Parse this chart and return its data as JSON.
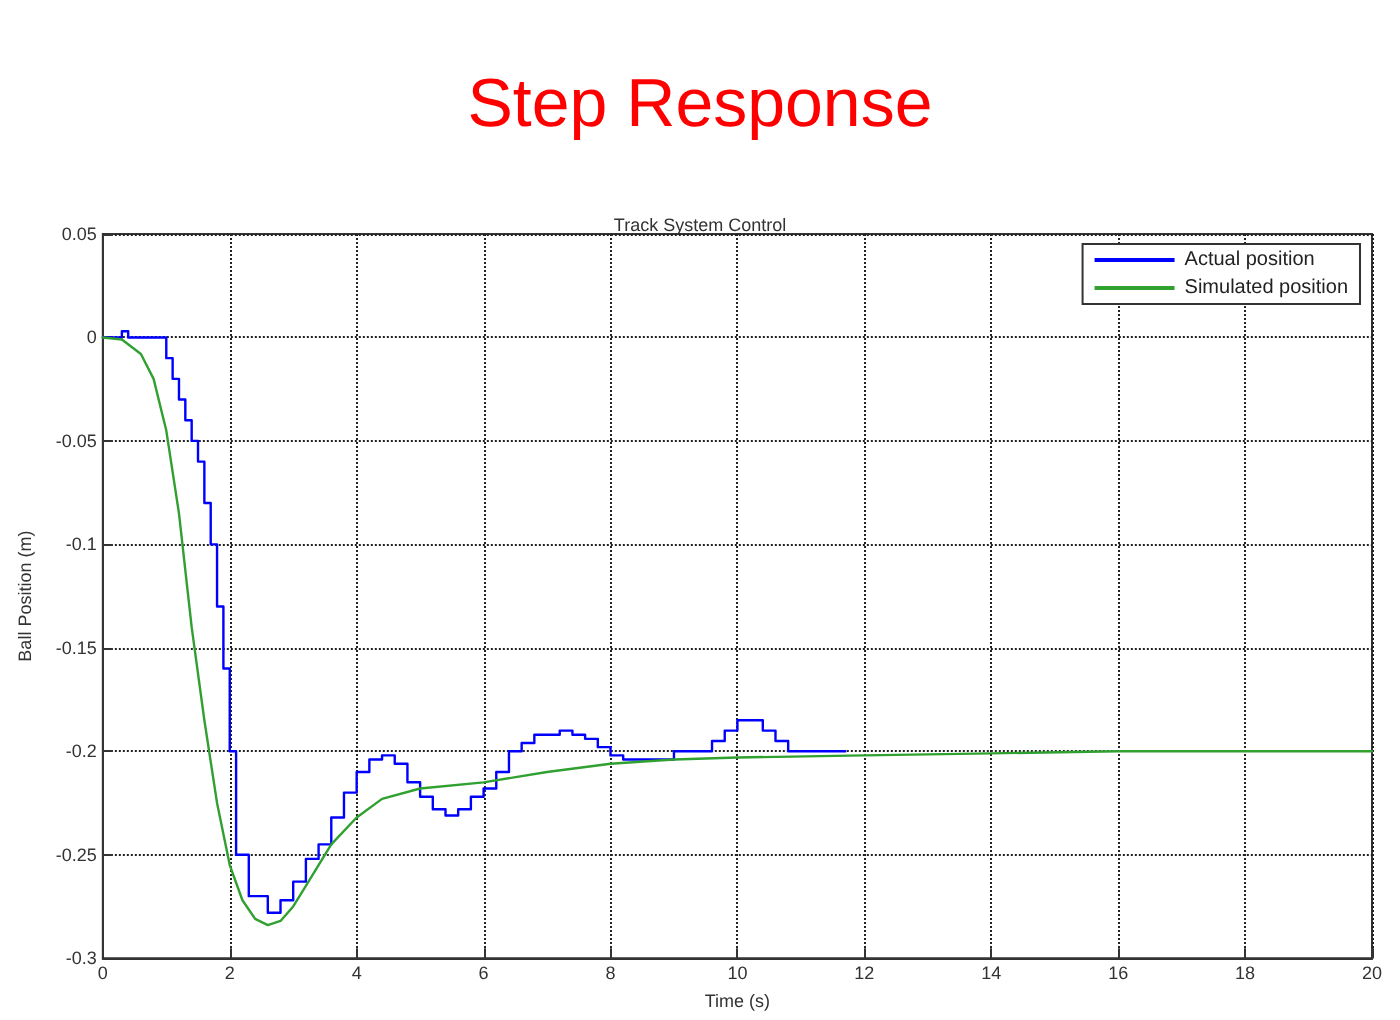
{
  "chart_data": {
    "type": "line",
    "title": "Step Response",
    "subtitle": "Track System Control",
    "xlabel": "Time (s)",
    "ylabel": "Ball Position (m)",
    "xlim": [
      0,
      20
    ],
    "xticks": [
      0,
      2,
      4,
      6,
      8,
      10,
      12,
      14,
      16,
      18,
      20
    ],
    "ylim": [
      -0.3,
      0.05
    ],
    "yticks": [
      -0.3,
      -0.25,
      -0.2,
      -0.15,
      -0.1,
      -0.05,
      0,
      0.05
    ],
    "grid": true,
    "legend": "top right",
    "marker": "none",
    "line_style": "solid",
    "series": [
      {
        "name": "Actual position",
        "type": "step",
        "color": "#0000ff",
        "x": [
          0,
          0.3,
          0.4,
          0.9,
          1.0,
          1.1,
          1.2,
          1.3,
          1.4,
          1.5,
          1.6,
          1.7,
          1.8,
          1.9,
          2.0,
          2.1,
          2.3,
          2.6,
          2.8,
          3.0,
          3.2,
          3.4,
          3.6,
          3.8,
          4.0,
          4.2,
          4.4,
          4.6,
          4.8,
          5.0,
          5.2,
          5.4,
          5.6,
          5.8,
          6.0,
          6.2,
          6.4,
          6.6,
          6.8,
          7.0,
          7.2,
          7.4,
          7.6,
          7.8,
          8.0,
          8.2,
          8.6,
          9.0,
          9.4,
          9.6,
          9.8,
          10.0,
          10.3,
          10.4,
          10.6,
          10.8,
          11.7
        ],
        "values": [
          0,
          0.003,
          0,
          0,
          -0.01,
          -0.02,
          -0.03,
          -0.04,
          -0.05,
          -0.06,
          -0.08,
          -0.1,
          -0.13,
          -0.16,
          -0.2,
          -0.25,
          -0.27,
          -0.278,
          -0.272,
          -0.263,
          -0.252,
          -0.245,
          -0.232,
          -0.22,
          -0.21,
          -0.204,
          -0.202,
          -0.206,
          -0.215,
          -0.222,
          -0.228,
          -0.231,
          -0.228,
          -0.222,
          -0.218,
          -0.21,
          -0.2,
          -0.196,
          -0.192,
          -0.192,
          -0.19,
          -0.192,
          -0.194,
          -0.198,
          -0.202,
          -0.204,
          -0.204,
          -0.2,
          -0.2,
          -0.195,
          -0.19,
          -0.185,
          -0.185,
          -0.19,
          -0.195,
          -0.2,
          -0.2
        ]
      },
      {
        "name": "Simulated position",
        "color": "#30a030",
        "x": [
          0,
          0.3,
          0.6,
          0.8,
          1.0,
          1.2,
          1.4,
          1.6,
          1.8,
          2.0,
          2.2,
          2.4,
          2.6,
          2.8,
          3.0,
          3.2,
          3.4,
          3.6,
          4.0,
          4.4,
          5.0,
          6.0,
          7.0,
          8.0,
          9.0,
          10.0,
          12,
          14,
          16,
          20
        ],
        "values": [
          0,
          -0.001,
          -0.008,
          -0.02,
          -0.045,
          -0.085,
          -0.14,
          -0.185,
          -0.225,
          -0.255,
          -0.272,
          -0.281,
          -0.284,
          -0.282,
          -0.275,
          -0.265,
          -0.255,
          -0.245,
          -0.232,
          -0.223,
          -0.218,
          -0.215,
          -0.21,
          -0.206,
          -0.204,
          -0.203,
          -0.202,
          -0.201,
          -0.2,
          -0.2
        ]
      }
    ]
  }
}
